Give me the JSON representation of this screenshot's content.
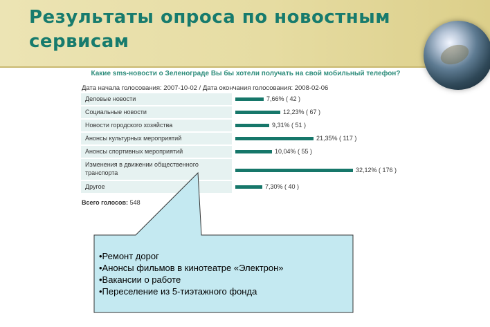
{
  "slide": {
    "title": "Результаты опроса по новостным сервисам",
    "callout_items": [
      "•Ремонт дорог",
      "•Анонсы фильмов в кинотеатре «Электрон»",
      "•Вакансии о работе",
      "•Переселение из 5-тиэтажного фонда"
    ]
  },
  "colors": {
    "accent": "#177b6d",
    "bar": "#16776a",
    "label_bg": "#e6f2f1",
    "callout_bg": "#c4e9f1"
  },
  "chart_data": {
    "type": "bar",
    "orientation": "horizontal",
    "title": "Какие sms-новости о Зеленограде Вы бы хотели получать на свой мобильный телефон?",
    "dates_text": "Дата начала голосования:  2007-10-02 / Дата окончания голосования: 2008-02-06",
    "categories": [
      "Деловые новости",
      "Социальные новости",
      "Новости городского хозяйства",
      "Анонсы культурных мероприятий",
      "Анонсы спортивных мероприятий",
      "Изменения в движении общественного транспорта",
      "Другое"
    ],
    "values": [
      7.66,
      12.23,
      9.31,
      21.35,
      10.04,
      32.12,
      7.3
    ],
    "value_labels": [
      "7,66% ( 42 )",
      "12,23% ( 67 )",
      "9,31% ( 51 )",
      "21,35% ( 117 )",
      "10,04% ( 55 )",
      "32,12% ( 176 )",
      "7,30% ( 40 )"
    ],
    "counts": [
      42,
      67,
      51,
      117,
      55,
      176,
      40
    ],
    "total_label": "Всего голосов:",
    "total_value": "548"
  }
}
